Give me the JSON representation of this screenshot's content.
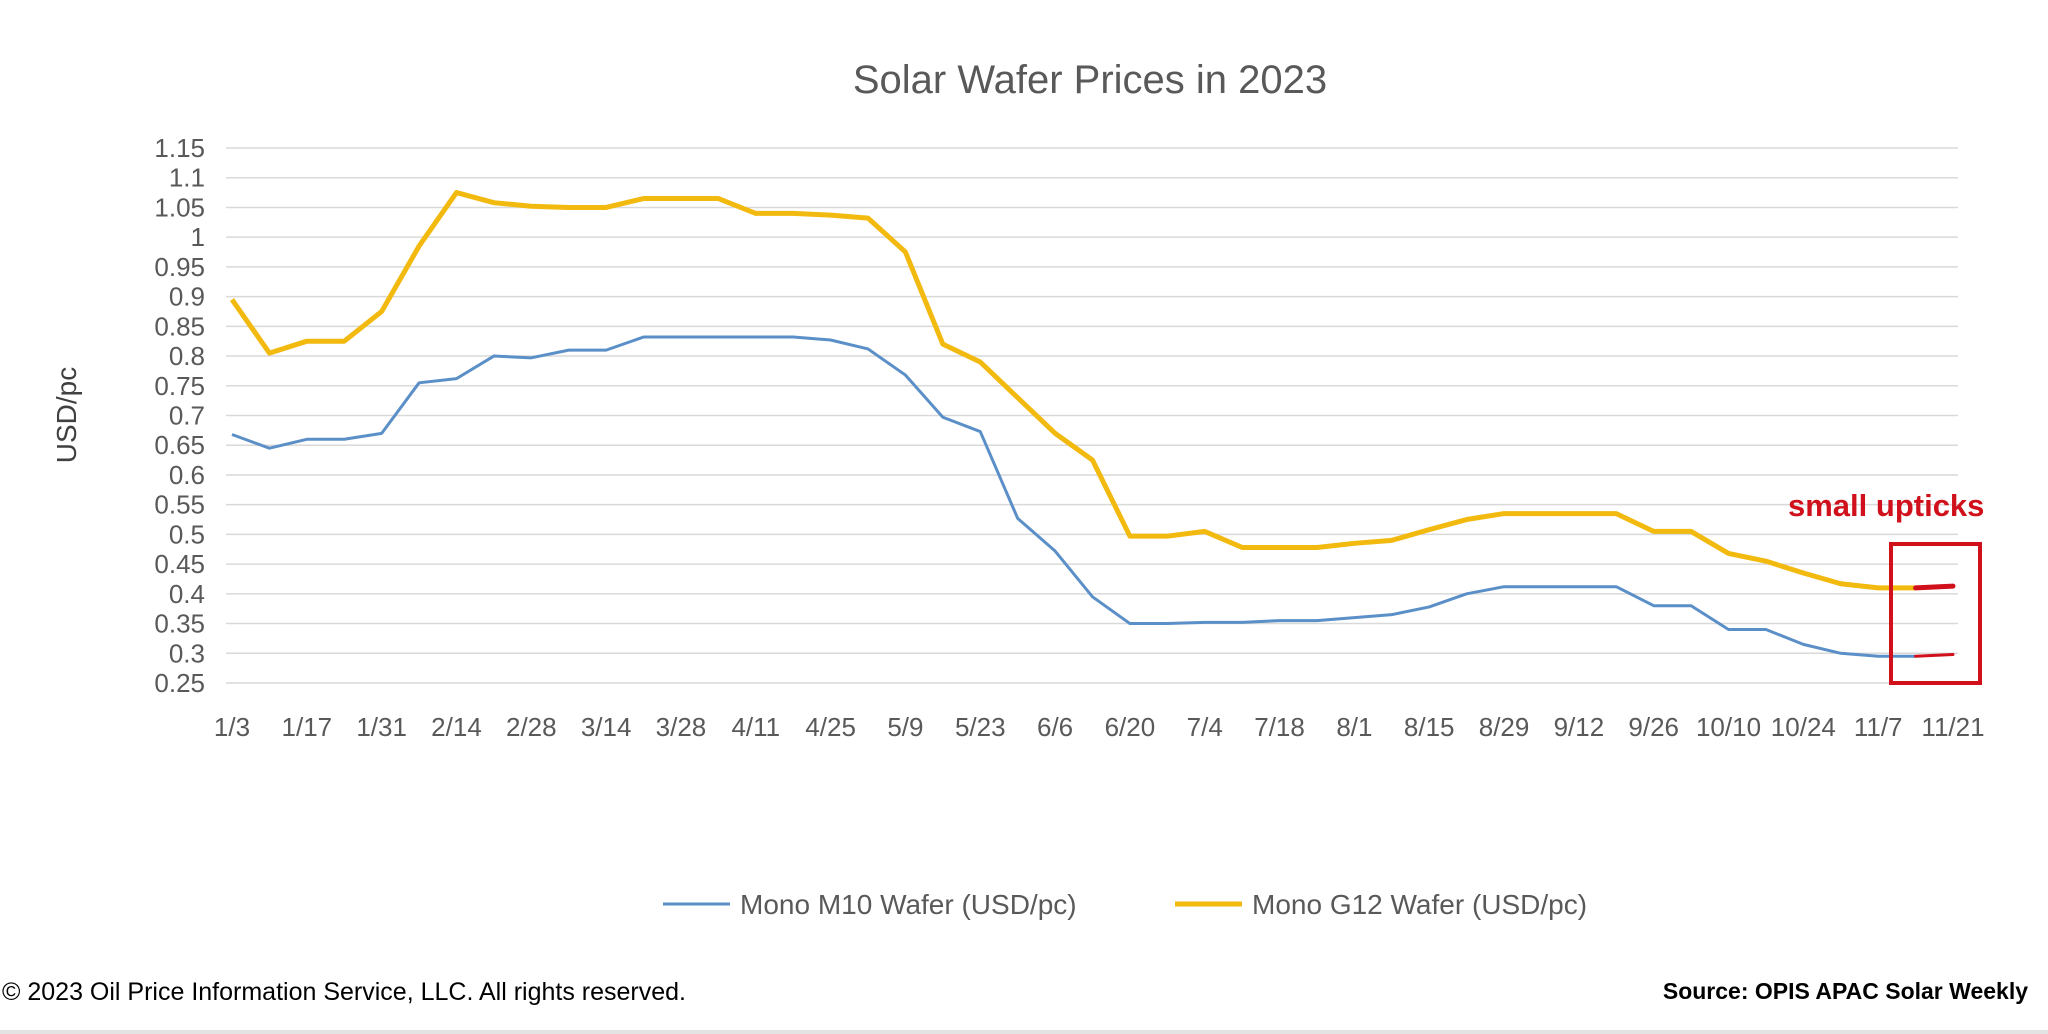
{
  "chart_data": {
    "type": "line",
    "title": "Solar Wafer Prices in 2023",
    "xlabel": "",
    "ylabel": "USD/pc",
    "ylim": [
      0.25,
      1.15
    ],
    "yticks": [
      "0.25",
      "0.3",
      "0.35",
      "0.4",
      "0.45",
      "0.5",
      "0.55",
      "0.6",
      "0.65",
      "0.7",
      "0.75",
      "0.8",
      "0.85",
      "0.9",
      "0.95",
      "1",
      "1.05",
      "1.1",
      "1.15"
    ],
    "x": [
      "1/3",
      "1/10",
      "1/17",
      "1/24",
      "1/31",
      "2/7",
      "2/14",
      "2/21",
      "2/28",
      "3/7",
      "3/14",
      "3/21",
      "3/28",
      "4/4",
      "4/11",
      "4/18",
      "4/25",
      "5/2",
      "5/9",
      "5/16",
      "5/23",
      "5/30",
      "6/6",
      "6/13",
      "6/20",
      "6/27",
      "7/4",
      "7/11",
      "7/18",
      "7/25",
      "8/1",
      "8/8",
      "8/15",
      "8/22",
      "8/29",
      "9/5",
      "9/12",
      "9/19",
      "9/26",
      "10/3",
      "10/10",
      "10/17",
      "10/24",
      "10/31",
      "11/7",
      "11/14",
      "11/21"
    ],
    "xtick_labels": [
      "1/3",
      "1/17",
      "1/31",
      "2/14",
      "2/28",
      "3/14",
      "3/28",
      "4/11",
      "4/25",
      "5/9",
      "5/23",
      "6/6",
      "6/20",
      "7/4",
      "7/18",
      "8/1",
      "8/15",
      "8/29",
      "9/12",
      "9/26",
      "10/10",
      "10/24",
      "11/7",
      "11/21"
    ],
    "grid": true,
    "legend_position": "bottom",
    "series": [
      {
        "name": "Mono M10 Wafer (USD/pc)",
        "color": "#5b8fc7",
        "values": [
          0.668,
          0.645,
          0.66,
          0.66,
          0.67,
          0.755,
          0.762,
          0.8,
          0.797,
          0.81,
          0.81,
          0.832,
          0.832,
          0.832,
          0.832,
          0.832,
          0.827,
          0.812,
          0.768,
          0.697,
          0.673,
          0.527,
          0.472,
          0.395,
          0.35,
          0.35,
          0.352,
          0.352,
          0.355,
          0.355,
          0.36,
          0.365,
          0.378,
          0.4,
          0.412,
          0.412,
          0.412,
          0.412,
          0.38,
          0.38,
          0.34,
          0.34,
          0.315,
          0.3,
          0.295,
          0.295,
          0.298
        ]
      },
      {
        "name": "Mono G12 Wafer (USD/pc)",
        "color": "#f2b90f",
        "values": [
          0.895,
          0.805,
          0.825,
          0.825,
          0.875,
          0.985,
          1.075,
          1.058,
          1.052,
          1.05,
          1.05,
          1.065,
          1.065,
          1.065,
          1.04,
          1.04,
          1.037,
          1.032,
          0.975,
          0.82,
          0.79,
          0.73,
          0.67,
          0.625,
          0.497,
          0.497,
          0.505,
          0.478,
          0.478,
          0.478,
          0.485,
          0.49,
          0.508,
          0.525,
          0.535,
          0.535,
          0.535,
          0.535,
          0.505,
          0.505,
          0.468,
          0.455,
          0.435,
          0.417,
          0.41,
          0.41,
          0.413
        ]
      }
    ],
    "annotation": {
      "text": "small upticks",
      "color": "#d0101b"
    }
  },
  "footer": {
    "copyright": "© 2023 Oil Price Information Service, LLC. All rights reserved.",
    "source": "Source: OPIS APAC Solar Weekly"
  }
}
